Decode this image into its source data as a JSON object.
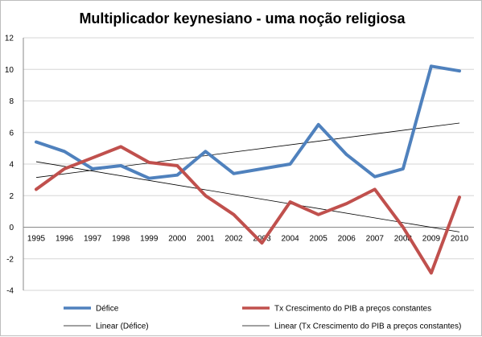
{
  "chart_data": {
    "type": "line",
    "title": "Multiplicador keynesiano - uma noção religiosa",
    "xlabel": "",
    "ylabel": "",
    "categories": [
      "1995",
      "1996",
      "1997",
      "1998",
      "1999",
      "2000",
      "2001",
      "2002",
      "2003",
      "2004",
      "2005",
      "2006",
      "2007",
      "2008",
      "2009",
      "2010"
    ],
    "ylim": [
      -4,
      12
    ],
    "yticks": [
      -4,
      -2,
      0,
      2,
      4,
      6,
      8,
      10,
      12
    ],
    "grid": true,
    "legend_position": "bottom",
    "series": [
      {
        "name": "Défice",
        "color": "#4f81bd",
        "values": [
          5.4,
          4.8,
          3.7,
          3.9,
          3.1,
          3.3,
          4.8,
          3.4,
          3.7,
          4.0,
          6.5,
          4.6,
          3.2,
          3.7,
          10.2,
          9.9
        ]
      },
      {
        "name": "Tx Crescimento do PIB a preços constantes",
        "color": "#c0504d",
        "values": [
          2.4,
          3.7,
          4.4,
          5.1,
          4.1,
          3.9,
          2.0,
          0.8,
          -1.0,
          1.6,
          0.8,
          1.5,
          2.4,
          0.0,
          -2.9,
          1.9
        ]
      }
    ],
    "trendlines": [
      {
        "name": "Linear (Défice)",
        "color": "#000000",
        "start": 3.15,
        "end": 6.6
      },
      {
        "name": "Linear (Tx Crescimento do PIB a preços constantes)",
        "color": "#000000",
        "start": 4.15,
        "end": -0.3
      }
    ]
  }
}
